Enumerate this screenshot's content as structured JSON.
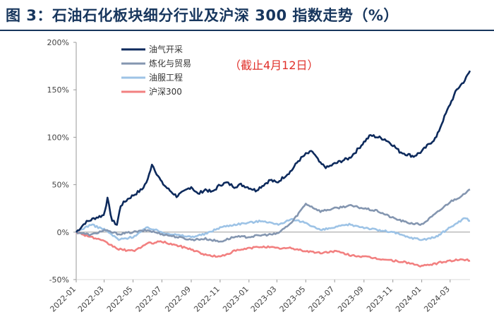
{
  "title": "图 3：石油石化板块细分行业及沪深 300 指数走势（%）",
  "chart_data": {
    "type": "line",
    "title": "图 3：石油石化板块细分行业及沪深 300 指数走势（%）",
    "annotation": "（截止4月12日）",
    "x_start": "2022-01-01",
    "x_end": "2024-04-12",
    "x_ticks": [
      "2022-01",
      "2022-03",
      "2022-05",
      "2022-07",
      "2022-09",
      "2022-11",
      "2023-01",
      "2023-03",
      "2023-05",
      "2023-07",
      "2023-09",
      "2023-11",
      "2024-01",
      "2024-03"
    ],
    "y_ticks": [
      "-50%",
      "0%",
      "50%",
      "100%",
      "150%",
      "200%"
    ],
    "ylim": [
      -50,
      200
    ],
    "y_unit": "%",
    "grid": false,
    "legend_position": "top-left",
    "series": [
      {
        "name": "油气开采",
        "color": "#0d2a5c",
        "points": [
          [
            "2022-01-01",
            0
          ],
          [
            "2022-01-20",
            10
          ],
          [
            "2022-02-10",
            15
          ],
          [
            "2022-02-28",
            18
          ],
          [
            "2022-03-08",
            35
          ],
          [
            "2022-03-18",
            12
          ],
          [
            "2022-03-28",
            8
          ],
          [
            "2022-04-05",
            28
          ],
          [
            "2022-04-20",
            35
          ],
          [
            "2022-05-05",
            40
          ],
          [
            "2022-05-20",
            45
          ],
          [
            "2022-06-01",
            55
          ],
          [
            "2022-06-10",
            72
          ],
          [
            "2022-06-20",
            62
          ],
          [
            "2022-07-01",
            52
          ],
          [
            "2022-07-15",
            45
          ],
          [
            "2022-08-01",
            38
          ],
          [
            "2022-08-15",
            42
          ],
          [
            "2022-09-01",
            48
          ],
          [
            "2022-09-15",
            40
          ],
          [
            "2022-10-01",
            45
          ],
          [
            "2022-10-15",
            42
          ],
          [
            "2022-11-01",
            50
          ],
          [
            "2022-11-15",
            52
          ],
          [
            "2022-12-01",
            48
          ],
          [
            "2022-12-15",
            50
          ],
          [
            "2023-01-01",
            47
          ],
          [
            "2023-01-15",
            44
          ],
          [
            "2023-02-01",
            50
          ],
          [
            "2023-02-15",
            55
          ],
          [
            "2023-03-01",
            52
          ],
          [
            "2023-03-15",
            58
          ],
          [
            "2023-04-01",
            65
          ],
          [
            "2023-04-15",
            75
          ],
          [
            "2023-05-01",
            82
          ],
          [
            "2023-05-15",
            85
          ],
          [
            "2023-06-01",
            72
          ],
          [
            "2023-06-15",
            68
          ],
          [
            "2023-07-01",
            72
          ],
          [
            "2023-07-15",
            75
          ],
          [
            "2023-08-01",
            78
          ],
          [
            "2023-08-15",
            85
          ],
          [
            "2023-09-01",
            95
          ],
          [
            "2023-09-15",
            102
          ],
          [
            "2023-10-01",
            100
          ],
          [
            "2023-10-15",
            98
          ],
          [
            "2023-11-01",
            92
          ],
          [
            "2023-11-15",
            85
          ],
          [
            "2023-12-01",
            82
          ],
          [
            "2023-12-15",
            80
          ],
          [
            "2024-01-01",
            85
          ],
          [
            "2024-01-15",
            92
          ],
          [
            "2024-02-01",
            100
          ],
          [
            "2024-02-15",
            118
          ],
          [
            "2024-03-01",
            135
          ],
          [
            "2024-03-15",
            150
          ],
          [
            "2024-04-01",
            160
          ],
          [
            "2024-04-12",
            170
          ]
        ]
      },
      {
        "name": "炼化与贸易",
        "color": "#8496b0",
        "points": [
          [
            "2022-01-01",
            0
          ],
          [
            "2022-02-01",
            -3
          ],
          [
            "2022-03-01",
            2
          ],
          [
            "2022-04-01",
            -2
          ],
          [
            "2022-05-01",
            0
          ],
          [
            "2022-06-01",
            2
          ],
          [
            "2022-07-01",
            -2
          ],
          [
            "2022-08-01",
            -5
          ],
          [
            "2022-09-01",
            -8
          ],
          [
            "2022-10-01",
            -7
          ],
          [
            "2022-11-01",
            -10
          ],
          [
            "2022-12-01",
            -5
          ],
          [
            "2023-01-01",
            -5
          ],
          [
            "2023-02-01",
            -3
          ],
          [
            "2023-03-01",
            -2
          ],
          [
            "2023-04-01",
            10
          ],
          [
            "2023-05-01",
            30
          ],
          [
            "2023-06-01",
            22
          ],
          [
            "2023-07-01",
            25
          ],
          [
            "2023-08-01",
            28
          ],
          [
            "2023-09-01",
            25
          ],
          [
            "2023-10-01",
            22
          ],
          [
            "2023-11-01",
            15
          ],
          [
            "2023-12-01",
            10
          ],
          [
            "2024-01-01",
            8
          ],
          [
            "2024-02-01",
            20
          ],
          [
            "2024-03-01",
            32
          ],
          [
            "2024-04-01",
            40
          ],
          [
            "2024-04-12",
            45
          ]
        ]
      },
      {
        "name": "油服工程",
        "color": "#9dc3e6",
        "points": [
          [
            "2022-01-01",
            0
          ],
          [
            "2022-02-01",
            8
          ],
          [
            "2022-03-01",
            3
          ],
          [
            "2022-04-01",
            -8
          ],
          [
            "2022-05-01",
            -5
          ],
          [
            "2022-06-01",
            5
          ],
          [
            "2022-07-01",
            0
          ],
          [
            "2022-08-01",
            -3
          ],
          [
            "2022-09-01",
            -5
          ],
          [
            "2022-10-01",
            -2
          ],
          [
            "2022-11-01",
            5
          ],
          [
            "2022-12-01",
            8
          ],
          [
            "2023-01-01",
            10
          ],
          [
            "2023-02-01",
            12
          ],
          [
            "2023-03-01",
            8
          ],
          [
            "2023-04-01",
            13
          ],
          [
            "2023-05-01",
            10
          ],
          [
            "2023-06-01",
            2
          ],
          [
            "2023-07-01",
            5
          ],
          [
            "2023-08-01",
            8
          ],
          [
            "2023-09-01",
            5
          ],
          [
            "2023-10-01",
            2
          ],
          [
            "2023-11-01",
            0
          ],
          [
            "2023-12-01",
            -5
          ],
          [
            "2024-01-01",
            -8
          ],
          [
            "2024-02-01",
            -5
          ],
          [
            "2024-03-01",
            5
          ],
          [
            "2024-04-01",
            15
          ],
          [
            "2024-04-12",
            12
          ]
        ]
      },
      {
        "name": "沪深300",
        "color": "#f28080",
        "points": [
          [
            "2022-01-01",
            0
          ],
          [
            "2022-02-01",
            -5
          ],
          [
            "2022-03-01",
            -10
          ],
          [
            "2022-04-01",
            -18
          ],
          [
            "2022-05-01",
            -20
          ],
          [
            "2022-06-01",
            -12
          ],
          [
            "2022-07-01",
            -10
          ],
          [
            "2022-08-01",
            -14
          ],
          [
            "2022-09-01",
            -18
          ],
          [
            "2022-10-01",
            -24
          ],
          [
            "2022-11-01",
            -26
          ],
          [
            "2022-12-01",
            -20
          ],
          [
            "2023-01-01",
            -17
          ],
          [
            "2023-02-01",
            -15
          ],
          [
            "2023-03-01",
            -17
          ],
          [
            "2023-04-01",
            -17
          ],
          [
            "2023-05-01",
            -20
          ],
          [
            "2023-06-01",
            -22
          ],
          [
            "2023-07-01",
            -20
          ],
          [
            "2023-08-01",
            -24
          ],
          [
            "2023-09-01",
            -26
          ],
          [
            "2023-10-01",
            -28
          ],
          [
            "2023-11-01",
            -30
          ],
          [
            "2023-12-01",
            -32
          ],
          [
            "2024-01-01",
            -36
          ],
          [
            "2024-02-01",
            -33
          ],
          [
            "2024-03-01",
            -30
          ],
          [
            "2024-04-01",
            -29
          ],
          [
            "2024-04-12",
            -30
          ]
        ]
      }
    ]
  }
}
